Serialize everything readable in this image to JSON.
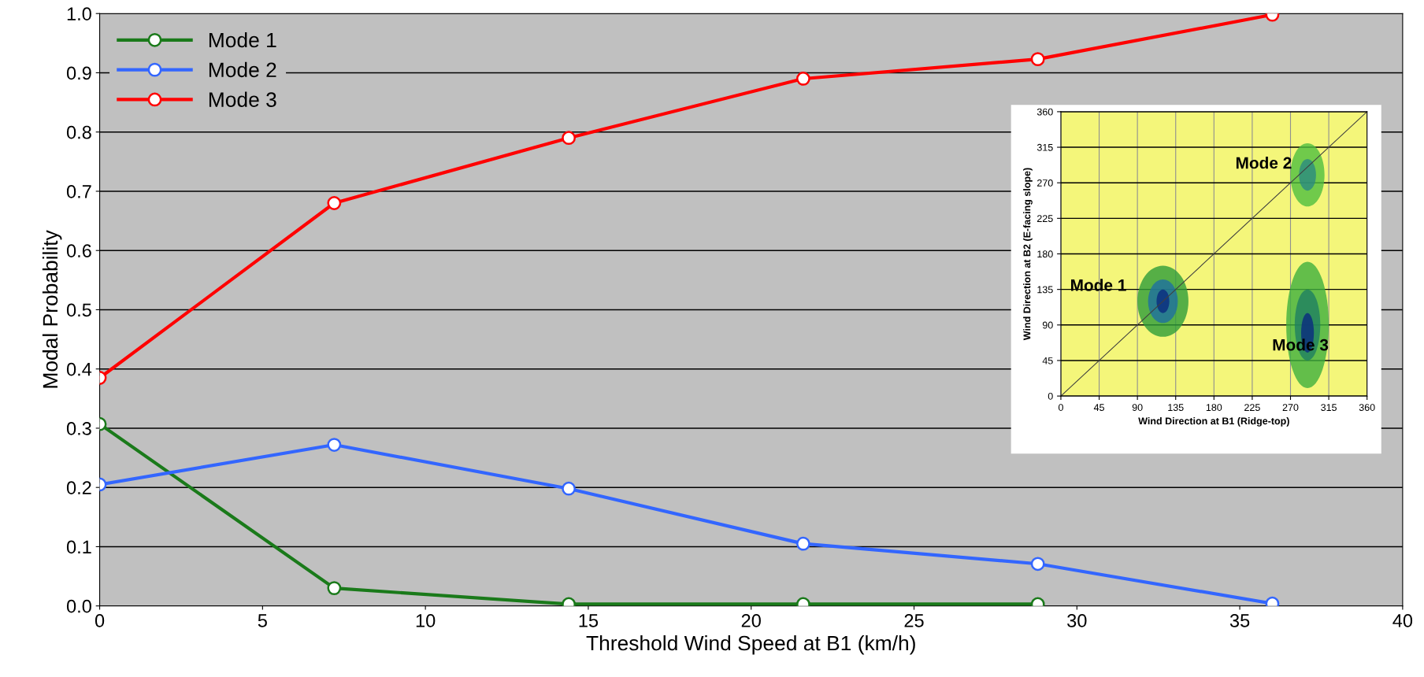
{
  "chart_data": [
    {
      "type": "line",
      "xlabel": "Threshold Wind Speed at B1 (km/h)",
      "ylabel": "Modal Probability",
      "x": [
        0,
        7.2,
        14.4,
        21.6,
        28.8,
        36
      ],
      "series": [
        {
          "name": "Mode 1",
          "color": "#1a7a1a",
          "values": [
            0.307,
            0.03,
            0.003,
            0.003,
            0.003,
            null
          ]
        },
        {
          "name": "Mode 2",
          "color": "#3366ff",
          "values": [
            0.205,
            0.272,
            0.198,
            0.105,
            0.071,
            0.004
          ]
        },
        {
          "name": "Mode 3",
          "color": "#ff0000",
          "values": [
            0.385,
            0.68,
            0.79,
            0.89,
            0.923,
            0.998
          ]
        }
      ],
      "xlim": [
        0,
        40
      ],
      "xticks": [
        0,
        5,
        10,
        15,
        20,
        25,
        30,
        35,
        40
      ],
      "ylim": [
        0,
        1
      ],
      "yticks": [
        {
          "value": 0,
          "label": "0.0"
        },
        {
          "value": 0.1,
          "label": "0.1"
        },
        {
          "value": 0.2,
          "label": "0.2"
        },
        {
          "value": 0.3,
          "label": "0.3"
        },
        {
          "value": 0.4,
          "label": "0.4"
        },
        {
          "value": 0.5,
          "label": "0.5"
        },
        {
          "value": 0.6,
          "label": "0.6"
        },
        {
          "value": 0.7,
          "label": "0.7"
        },
        {
          "value": 0.8,
          "label": "0.8"
        },
        {
          "value": 0.9,
          "label": "0.9"
        },
        {
          "value": 1,
          "label": "1.0"
        }
      ],
      "grid": "y",
      "legend": "top left",
      "marker": "circle",
      "line_style": "solid"
    },
    {
      "type": "line",
      "xlabel": "Wind Direction at B1 (Ridge-top)",
      "ylabel": "Wind Direction at B2 (E-facing slope)",
      "xlim": [
        0,
        360
      ],
      "xticks": [
        0,
        45,
        90,
        135,
        180,
        225,
        270,
        315,
        360
      ],
      "ylim": [
        0,
        360
      ],
      "yticks": [
        0,
        45,
        90,
        135,
        180,
        225,
        270,
        315,
        360
      ],
      "grid": true,
      "series": [
        {
          "type": "line",
          "color": "#404040",
          "x": [
            0,
            360
          ],
          "values": [
            0,
            360
          ]
        }
      ],
      "annotations": [
        "Mode 1",
        "Mode 2",
        "Mode 3"
      ]
    }
  ]
}
